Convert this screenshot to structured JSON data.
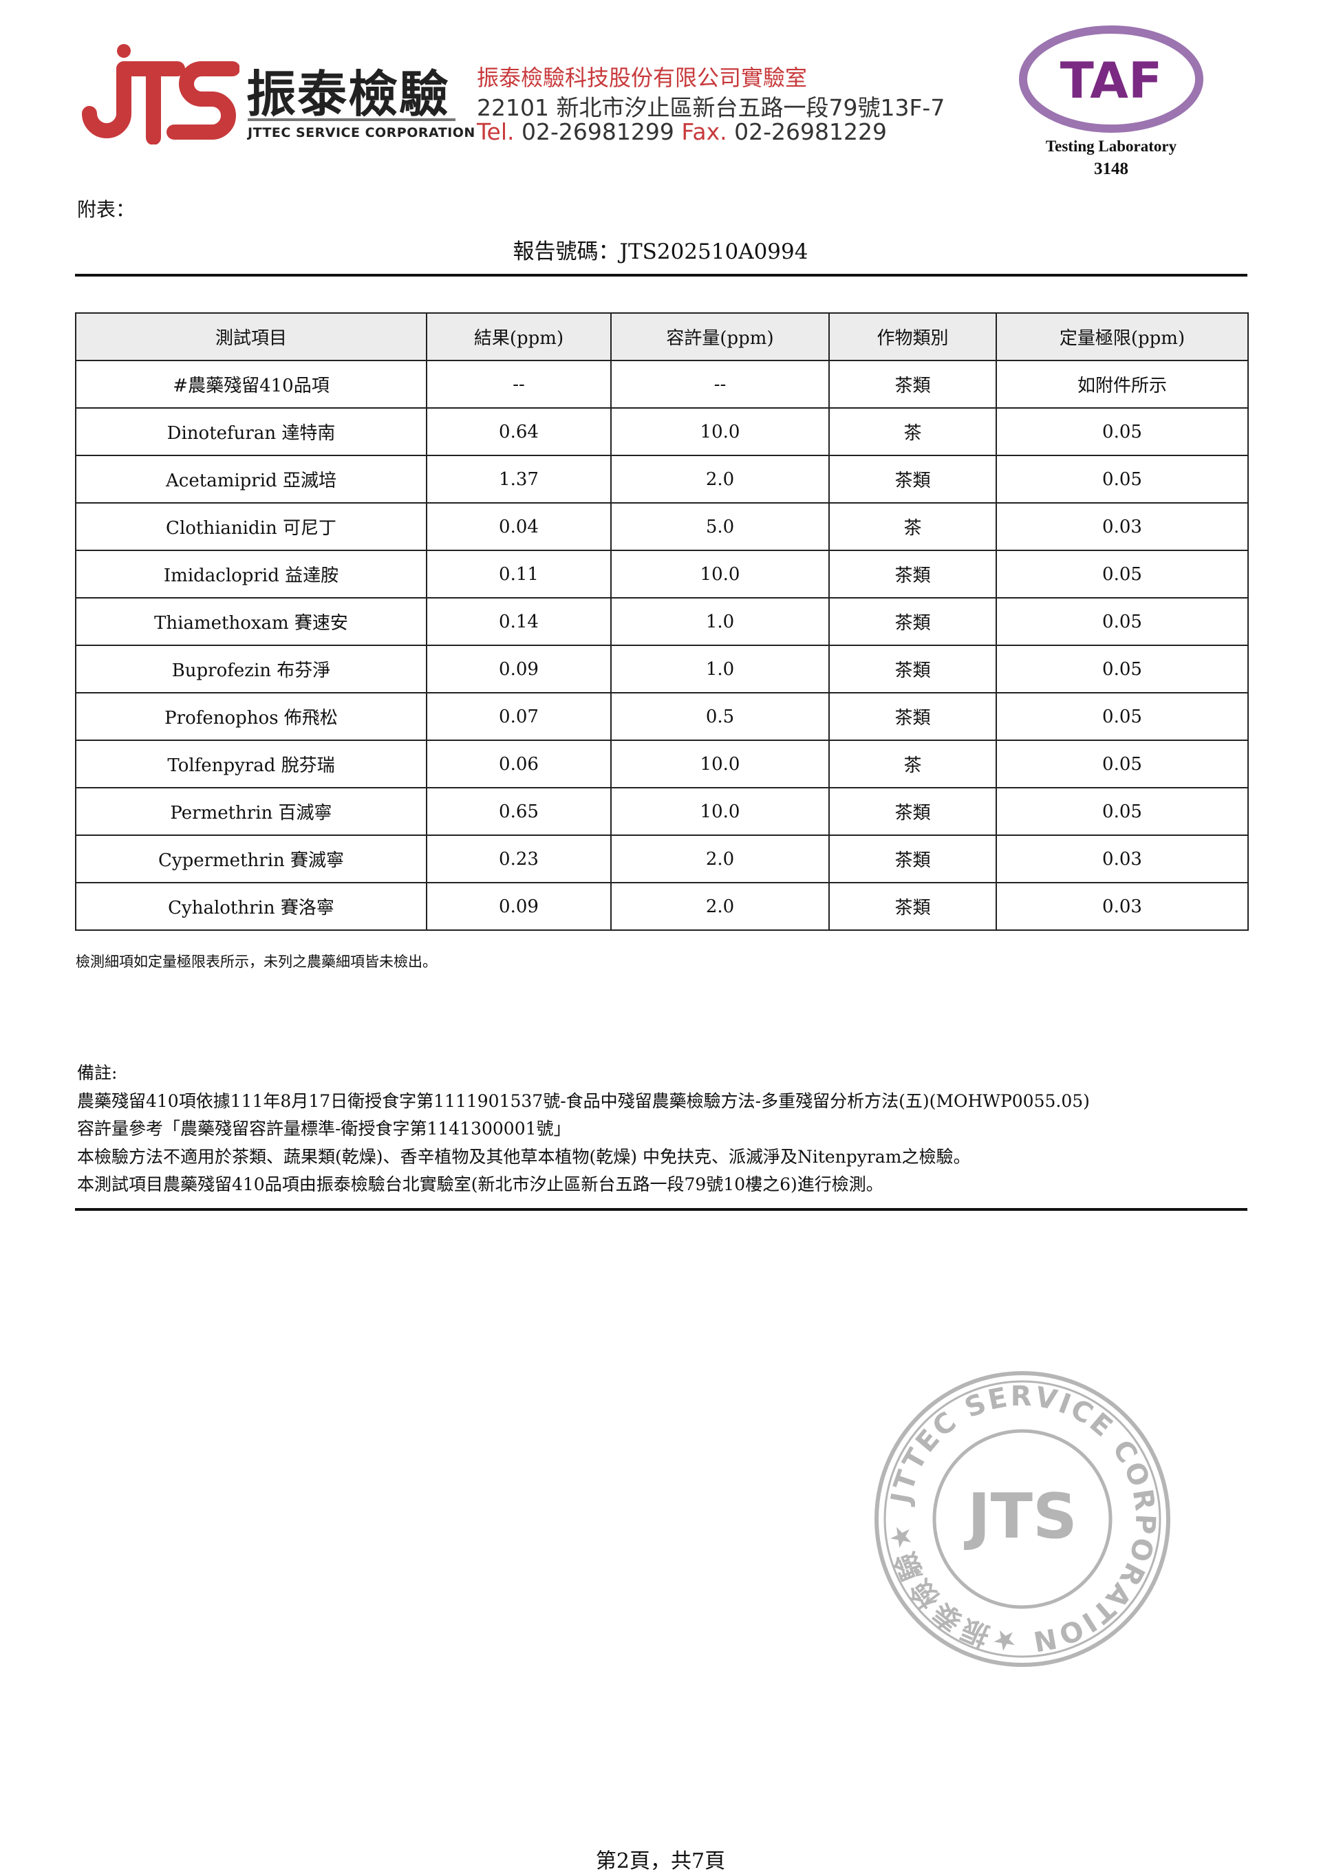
{
  "header": {
    "logo_text": "JTS",
    "brand_cn": "振泰檢驗",
    "brand_en": "JTTEC SERVICE CORPORATION",
    "company": "振泰檢驗科技股份有限公司實驗室",
    "address": "22101 新北市汐止區新台五路一段79號13F-7",
    "tel_label": "Tel.",
    "tel": "02-26981299",
    "fax_label": "Fax.",
    "fax": "02-26981229",
    "taf_logo_text": "TAF",
    "taf_label": "Testing Laboratory",
    "taf_number": "3148"
  },
  "appendix_label": "附表：",
  "report_number": "報告號碼：JTS202510A0994",
  "table": {
    "columns": [
      "測試項目",
      "結果(ppm)",
      "容許量(ppm)",
      "作物類別",
      "定量極限(ppm)"
    ],
    "rows": [
      [
        "#農藥殘留410品項",
        "--",
        "--",
        "茶類",
        "如附件所示"
      ],
      [
        "Dinotefuran 達特南",
        "0.64",
        "10.0",
        "茶",
        "0.05"
      ],
      [
        "Acetamiprid 亞滅培",
        "1.37",
        "2.0",
        "茶類",
        "0.05"
      ],
      [
        "Clothianidin 可尼丁",
        "0.04",
        "5.0",
        "茶",
        "0.03"
      ],
      [
        "Imidacloprid 益達胺",
        "0.11",
        "10.0",
        "茶類",
        "0.05"
      ],
      [
        "Thiamethoxam 賽速安",
        "0.14",
        "1.0",
        "茶類",
        "0.05"
      ],
      [
        "Buprofezin 布芬淨",
        "0.09",
        "1.0",
        "茶類",
        "0.05"
      ],
      [
        "Profenophos 佈飛松",
        "0.07",
        "0.5",
        "茶類",
        "0.05"
      ],
      [
        "Tolfenpyrad 脫芬瑞",
        "0.06",
        "10.0",
        "茶",
        "0.05"
      ],
      [
        "Permethrin 百滅寧",
        "0.65",
        "10.0",
        "茶類",
        "0.05"
      ],
      [
        "Cypermethrin 賽滅寧",
        "0.23",
        "2.0",
        "茶類",
        "0.03"
      ],
      [
        "Cyhalothrin 賽洛寧",
        "0.09",
        "2.0",
        "茶類",
        "0.03"
      ]
    ]
  },
  "footnote": "檢測細項如定量極限表所示，未列之農藥細項皆未檢出。",
  "notes": {
    "title": "備註:",
    "lines": [
      "農藥殘留410項依據111年8月17日衛授食字第1111901537號-食品中殘留農藥檢驗方法-多重殘留分析方法(五)(MOHWP0055.05)",
      "容許量參考「農藥殘留容許量標準-衛授食字第1141300001號」",
      "本檢驗方法不適用於茶類、蔬果類(乾燥)、香辛植物及其他草本植物(乾燥) 中免扶克、派滅淨及Nitenpyram之檢驗。",
      "本測試項目農藥殘留410品項由振泰檢驗台北實驗室(新北市汐止區新台五路一段79號10樓之6)進行檢測。"
    ]
  },
  "stamp_text": "JTTEC SERVICE CORPORATION ★振泰檢驗★",
  "page_footer": "第2頁，共7頁",
  "colors": {
    "brand_red": "#c8393b",
    "taf_purple": "#7a2a82",
    "stamp_gray": "#b5b5b5"
  }
}
